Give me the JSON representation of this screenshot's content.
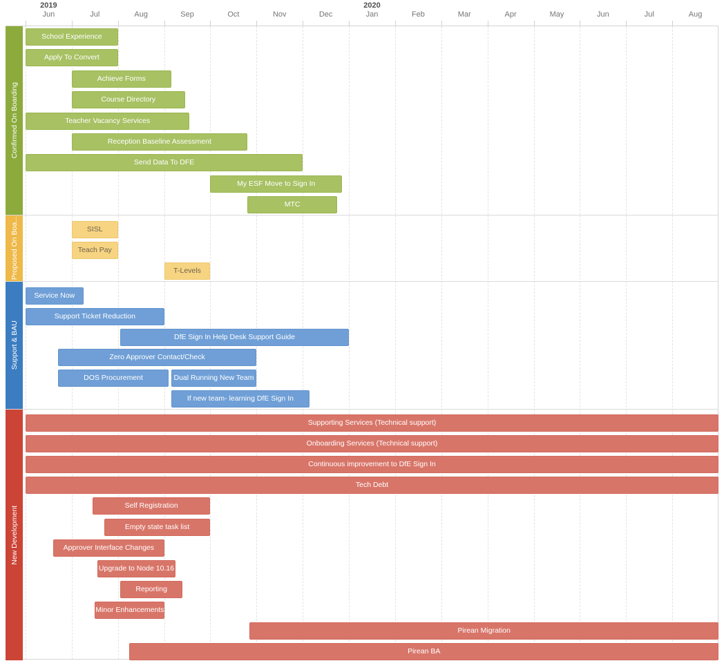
{
  "timeline": {
    "months": [
      {
        "year": "2019",
        "label": "Jun"
      },
      {
        "label": "Jul"
      },
      {
        "label": "Aug"
      },
      {
        "label": "Sep"
      },
      {
        "label": "Oct"
      },
      {
        "label": "Nov"
      },
      {
        "label": "Dec"
      },
      {
        "year": "2020",
        "label": "Jan"
      },
      {
        "label": "Feb"
      },
      {
        "label": "Mar"
      },
      {
        "label": "Apr"
      },
      {
        "label": "May"
      },
      {
        "label": "Jun"
      },
      {
        "label": "Jul"
      },
      {
        "label": "Aug"
      }
    ]
  },
  "chart_data": {
    "type": "bar",
    "subtype": "gantt",
    "title": "",
    "x_axis": {
      "unit": "months offset from 2019-06-01",
      "range": [
        0,
        15
      ],
      "tick_labels": [
        "2019 Jun",
        "Jul",
        "Aug",
        "Sep",
        "Oct",
        "Nov",
        "Dec",
        "2020 Jan",
        "Feb",
        "Mar",
        "Apr",
        "May",
        "Jun",
        "Jul",
        "Aug"
      ],
      "grid": "dashed-vertical-month-lines"
    },
    "sections": [
      {
        "label": "Confirmed On Boarding",
        "sidebar_color": "#8cab3c",
        "bar_fill": "#a7c163",
        "bar_border": "#9bb650",
        "bar_text_color": "#ffffff",
        "rows": 9,
        "tasks": [
          {
            "label": "School Experience",
            "row": 0,
            "start": 0,
            "end": 2
          },
          {
            "label": "Apply To Convert",
            "row": 1,
            "start": 0,
            "end": 2
          },
          {
            "label": "Achieve Forms",
            "row": 2,
            "start": 1,
            "end": 3.15
          },
          {
            "label": "Course Directory",
            "row": 3,
            "start": 1,
            "end": 3.45
          },
          {
            "label": "Teacher Vacancy Services",
            "row": 4,
            "start": 0,
            "end": 3.55
          },
          {
            "label": "Reception Baseline Assessment",
            "row": 5,
            "start": 1,
            "end": 4.8
          },
          {
            "label": "Send Data To DFE",
            "row": 6,
            "start": 0,
            "end": 6
          },
          {
            "label": "My ESF Move to Sign In",
            "row": 7,
            "start": 4,
            "end": 6.85
          },
          {
            "label": "MTC",
            "row": 8,
            "start": 4.8,
            "end": 6.75
          }
        ]
      },
      {
        "label": "Proposed On Boa...",
        "sidebar_color": "#eeb949",
        "bar_fill": "#f7d481",
        "bar_border": "#ecc76e",
        "bar_text_color": "#6e6352",
        "rows": 3,
        "tasks": [
          {
            "label": "SISL",
            "row": 0,
            "start": 1,
            "end": 2
          },
          {
            "label": "Teach Pay",
            "row": 1,
            "start": 1,
            "end": 2
          },
          {
            "label": "T-Levels",
            "row": 2,
            "start": 3,
            "end": 4
          }
        ]
      },
      {
        "label": "Support & BAU",
        "sidebar_color": "#3c7dc1",
        "bar_fill": "#6f9fd6",
        "bar_border": "#6394cd",
        "bar_text_color": "#ffffff",
        "rows": 6,
        "tasks": [
          {
            "label": "Service Now",
            "row": 0,
            "start": 0,
            "end": 1.25
          },
          {
            "label": "Support Ticket Reduction",
            "row": 1,
            "start": 0,
            "end": 3
          },
          {
            "label": "DfE Sign In Help Desk Support Guide",
            "row": 2,
            "start": 2.05,
            "end": 7
          },
          {
            "label": "Zero Approver Contact/Check",
            "row": 3,
            "start": 0.7,
            "end": 5
          },
          {
            "label": "DOS Procurement",
            "row": 4,
            "start": 0.7,
            "end": 3.1
          },
          {
            "label": "Dual Running New Team",
            "row": 4,
            "start": 3.15,
            "end": 5
          },
          {
            "label": "If new team- learning DfE Sign In",
            "row": 5,
            "start": 3.15,
            "end": 6.15
          }
        ]
      },
      {
        "label": "New Development",
        "sidebar_color": "#cb4436",
        "bar_fill": "#d87569",
        "bar_border": "#d2685c",
        "bar_text_color": "#ffffff",
        "rows": 12,
        "tasks": [
          {
            "label": "Supporting Services (Technical support)",
            "row": 0,
            "start": 0,
            "end": 15
          },
          {
            "label": "Onboarding Services (Technical support)",
            "row": 1,
            "start": 0,
            "end": 15
          },
          {
            "label": "Continuous improvement to DfE Sign In",
            "row": 2,
            "start": 0,
            "end": 15
          },
          {
            "label": "Tech Debt",
            "row": 3,
            "start": 0,
            "end": 15
          },
          {
            "label": "Self Registration",
            "row": 4,
            "start": 1.45,
            "end": 4
          },
          {
            "label": "Empty state task list",
            "row": 5,
            "start": 1.7,
            "end": 4
          },
          {
            "label": "Approver Interface Changes",
            "row": 6,
            "start": 0.6,
            "end": 3
          },
          {
            "label": "Upgrade to Node 10.16",
            "row": 7,
            "start": 1.55,
            "end": 3.25
          },
          {
            "label": "Reporting",
            "row": 8,
            "start": 2.05,
            "end": 3.4
          },
          {
            "label": "Minor Enhancements",
            "row": 9,
            "start": 1.5,
            "end": 3
          },
          {
            "label": "Pirean Migration",
            "row": 10,
            "start": 4.85,
            "end": 15
          },
          {
            "label": "Pirean BA",
            "row": 11,
            "start": 2.25,
            "end": 15
          }
        ]
      }
    ]
  }
}
